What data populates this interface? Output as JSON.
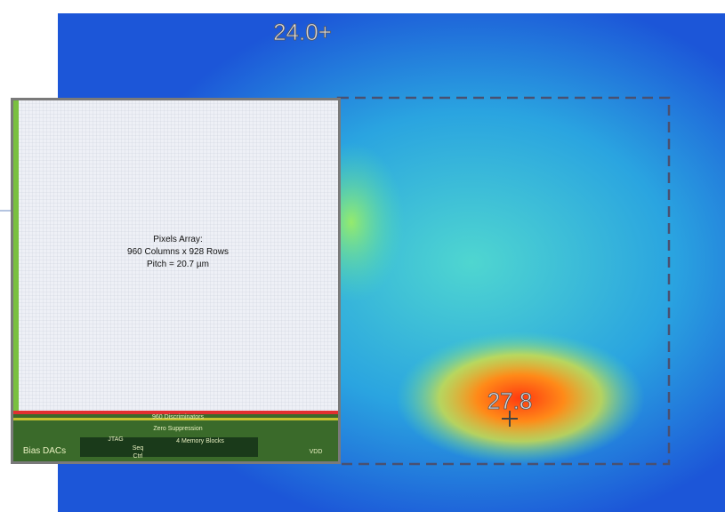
{
  "thermal_map": {
    "reference_label": "24.0+",
    "max_label": "27.8"
  },
  "chip": {
    "lines": [
      "Pixels Array:",
      "960 Columns x 928 Rows",
      "Pitch = 20.7 µm"
    ],
    "blocks": [
      "960 Discriminators",
      "Zero Suppression",
      "4 Memory Blocks",
      "Bias DACs",
      "JTAG",
      "Seq",
      "Ctrl",
      "VDD"
    ]
  }
}
